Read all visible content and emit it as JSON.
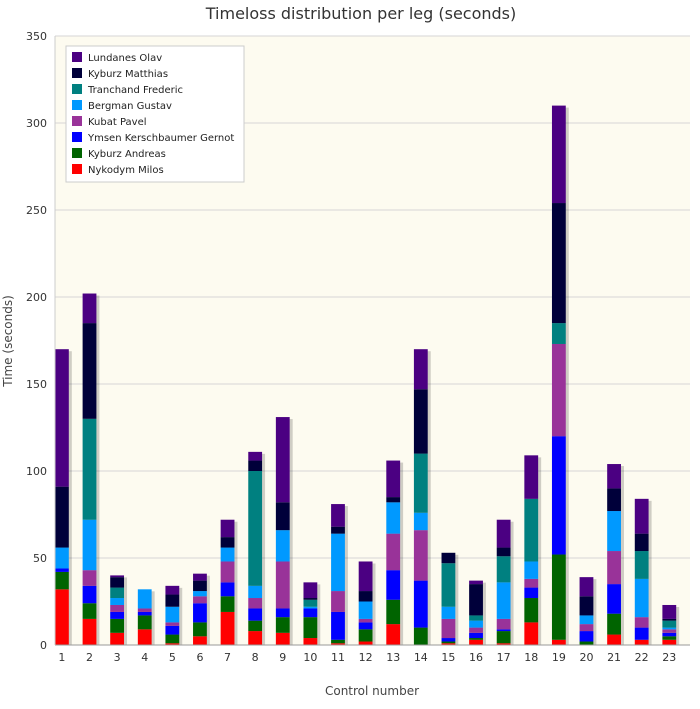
{
  "chart_data": {
    "type": "bar",
    "stacked": true,
    "title": "Timeloss distribution per leg (seconds)",
    "xlabel": "Control number",
    "ylabel": "Time (seconds)",
    "ylim": [
      0,
      350
    ],
    "yticks": [
      0,
      50,
      100,
      150,
      200,
      250,
      300,
      350
    ],
    "grid": "horizontal",
    "legend_position": "top-left",
    "categories": [
      "1",
      "2",
      "3",
      "4",
      "5",
      "6",
      "7",
      "8",
      "9",
      "10",
      "11",
      "12",
      "13",
      "14",
      "15",
      "16",
      "17",
      "18",
      "19",
      "20",
      "21",
      "22",
      "23"
    ],
    "series": [
      {
        "name": "Nykodym Milos",
        "color": "#ff0000",
        "values": [
          32,
          15,
          7,
          9,
          1,
          5,
          19,
          8,
          7,
          4,
          1,
          2,
          12,
          0,
          1,
          3,
          1,
          13,
          3,
          0,
          6,
          3,
          3
        ]
      },
      {
        "name": "Kyburz Andreas",
        "color": "#006400",
        "values": [
          10,
          9,
          8,
          8,
          5,
          8,
          9,
          6,
          9,
          12,
          2,
          7,
          14,
          10,
          1,
          1,
          7,
          14,
          49,
          2,
          12,
          0,
          2
        ]
      },
      {
        "name": "Ymsen Kerschbaumer Gernot",
        "color": "#0000ff",
        "values": [
          2,
          10,
          4,
          2,
          5,
          11,
          8,
          7,
          5,
          5,
          16,
          4,
          17,
          27,
          2,
          3,
          1,
          6,
          68,
          6,
          17,
          7,
          2
        ]
      },
      {
        "name": "Kubat Pavel",
        "color": "#993399",
        "values": [
          0,
          9,
          4,
          2,
          2,
          4,
          12,
          6,
          27,
          0,
          12,
          2,
          21,
          29,
          11,
          3,
          6,
          5,
          53,
          4,
          19,
          6,
          2
        ]
      },
      {
        "name": "Bergman Gustav",
        "color": "#0099ff",
        "values": [
          12,
          29,
          4,
          11,
          9,
          3,
          8,
          7,
          18,
          1,
          33,
          10,
          18,
          10,
          7,
          4,
          21,
          10,
          0,
          5,
          23,
          22,
          1
        ]
      },
      {
        "name": "Tranchand Frederic",
        "color": "#008080",
        "values": [
          0,
          58,
          6,
          0,
          0,
          0,
          0,
          66,
          0,
          4,
          0,
          0,
          0,
          34,
          25,
          3,
          15,
          36,
          12,
          0,
          0,
          16,
          4
        ]
      },
      {
        "name": "Kyburz Matthias",
        "color": "#00003a",
        "values": [
          35,
          55,
          6,
          0,
          7,
          6,
          6,
          6,
          16,
          1,
          4,
          6,
          3,
          37,
          6,
          18,
          5,
          0,
          69,
          11,
          13,
          10,
          1
        ]
      },
      {
        "name": "Lundanes Olav",
        "color": "#4b0082",
        "values": [
          79,
          17,
          1,
          0,
          5,
          4,
          10,
          5,
          49,
          9,
          13,
          17,
          21,
          23,
          0,
          2,
          16,
          25,
          56,
          11,
          14,
          20,
          8
        ]
      }
    ]
  }
}
